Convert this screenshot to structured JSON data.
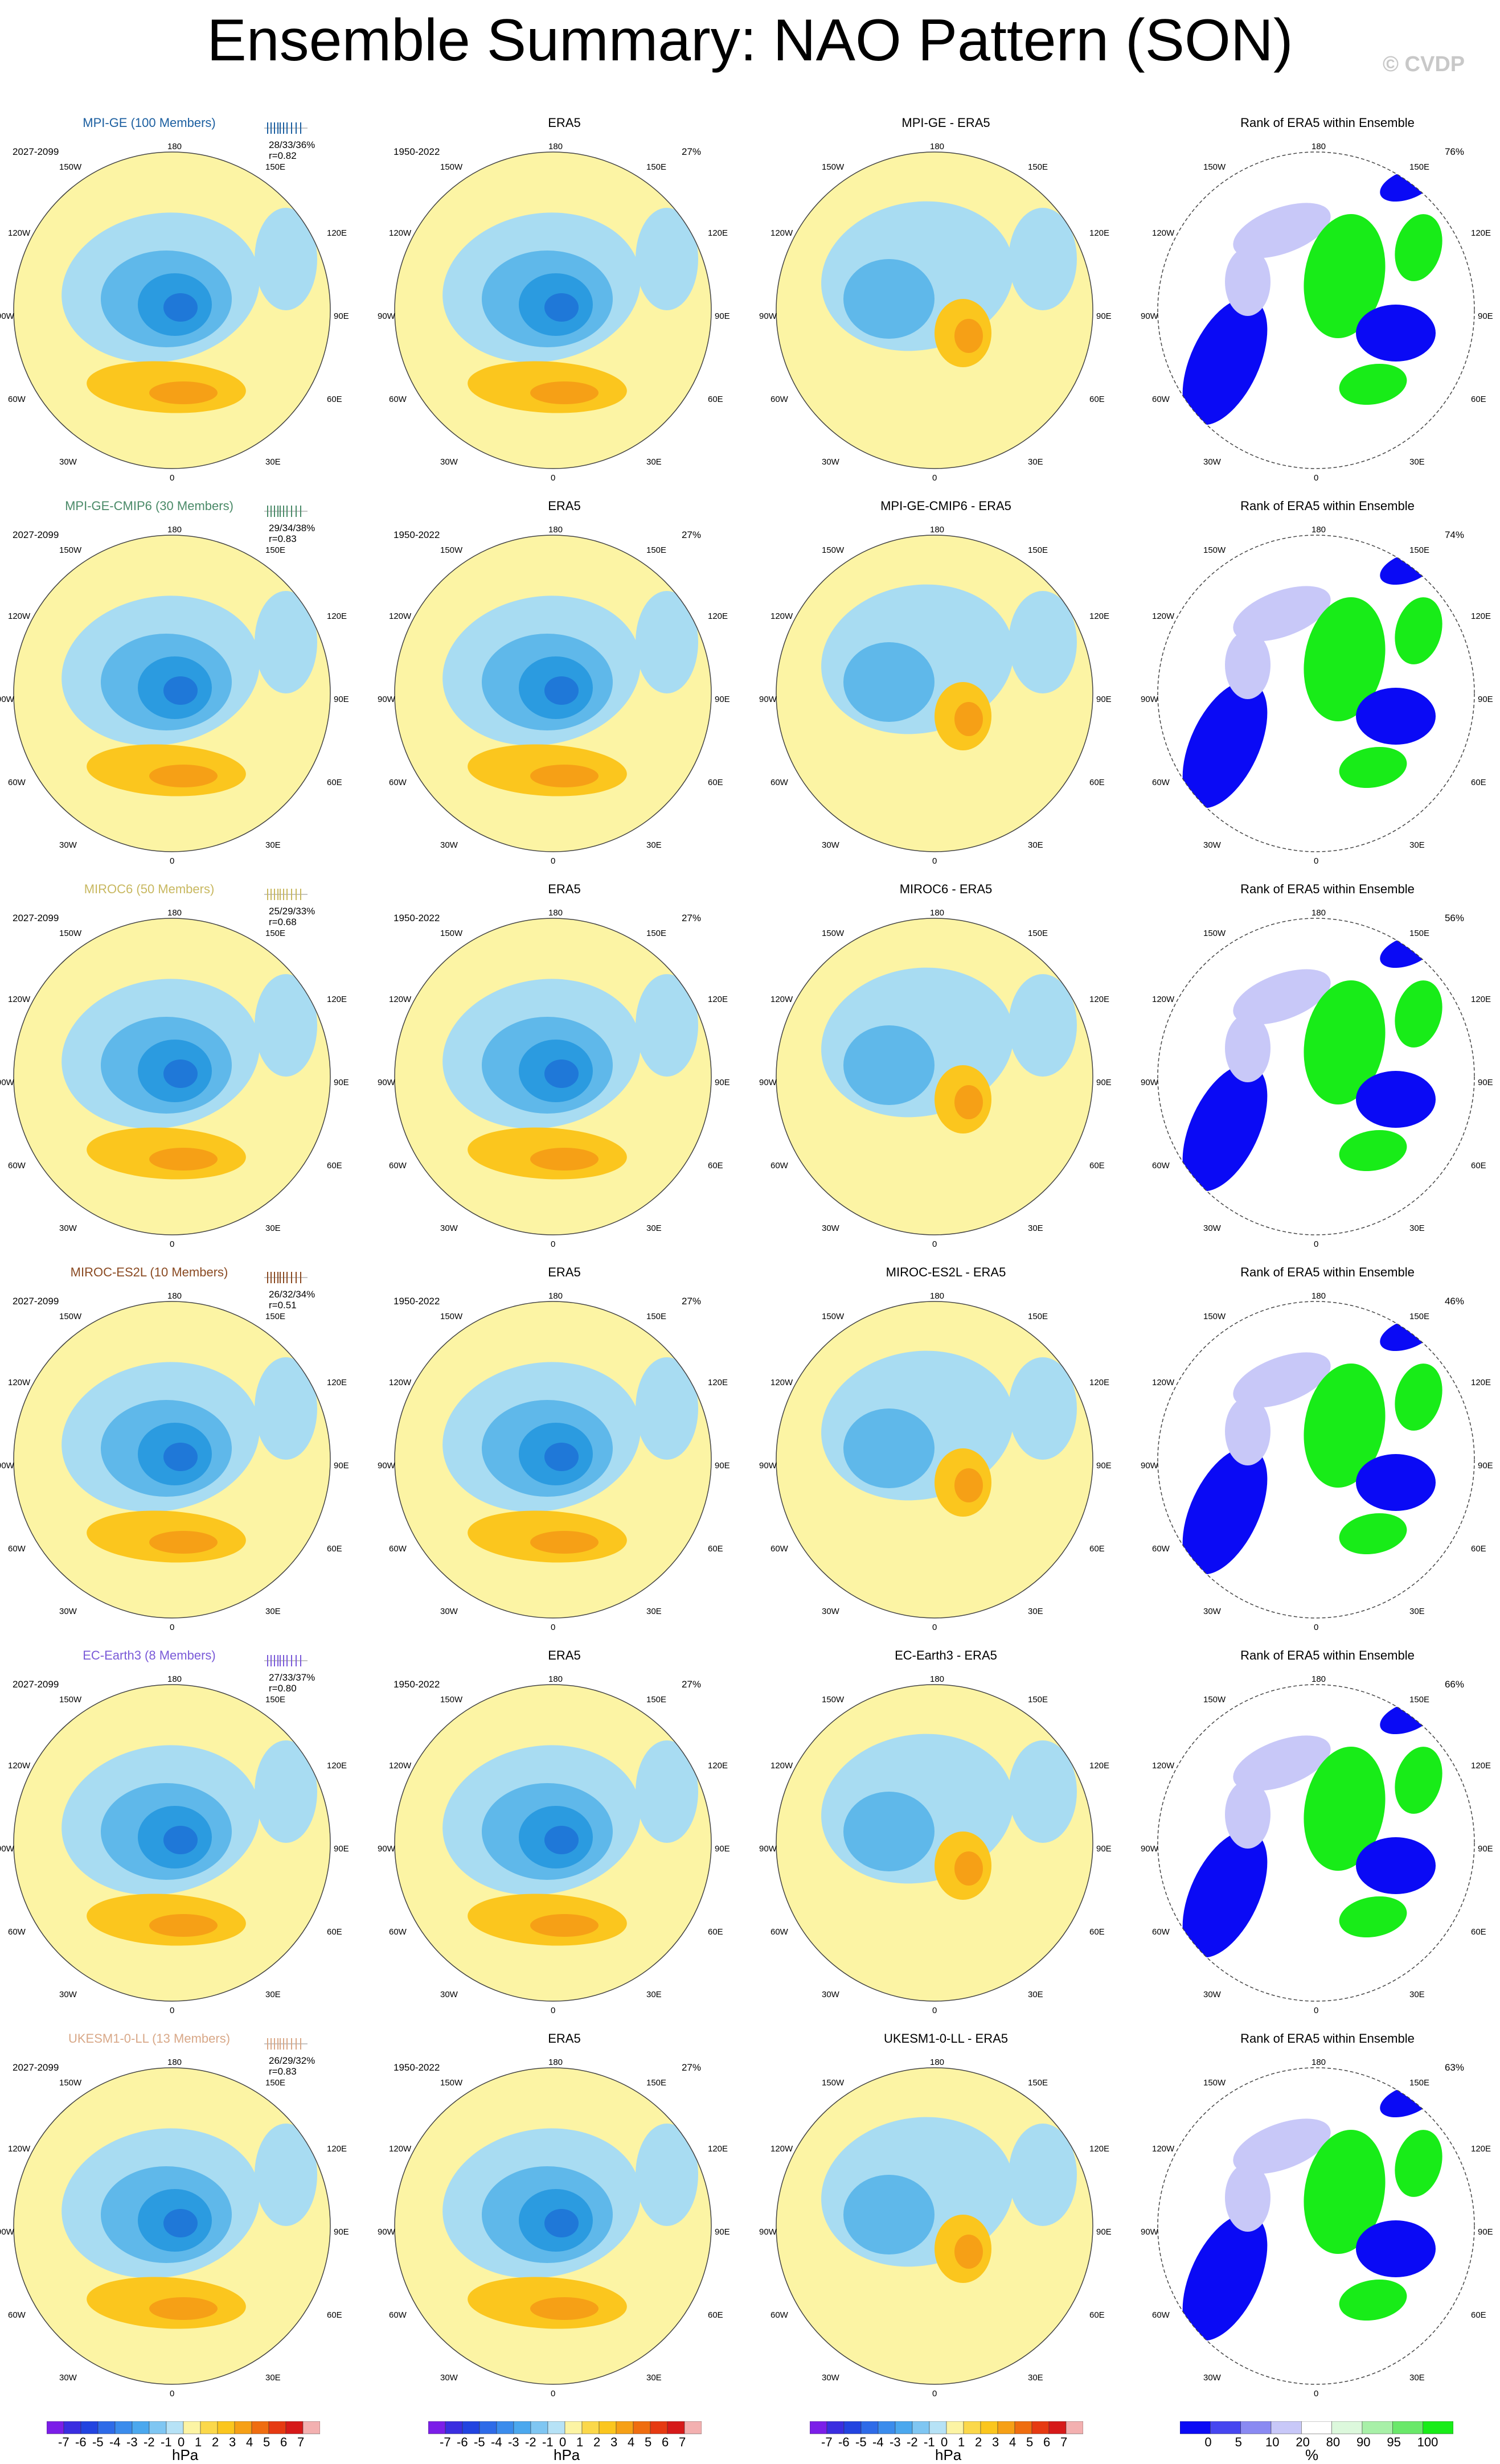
{
  "title": "Ensemble Summary: NAO Pattern (SON)",
  "watermark": "© CVDP",
  "colors": {
    "pos1": "#fcf4a4",
    "pos2": "#fbc61e",
    "pos3": "#f6a016",
    "pos4": "#ef6d10",
    "neg1": "#a8dcf2",
    "neg2": "#5fb8ea",
    "neg3": "#2b9be0",
    "neg4": "#1f78d8",
    "rank_low": "#0a0af5",
    "rank_mid": "#c8c8f8",
    "rank_high": "#18ec18"
  },
  "map_labels": {
    "top": "180",
    "bottom": "0",
    "left_top": "150W",
    "right_top": "150E",
    "left_upper": "120W",
    "right_upper": "120E",
    "left_mid": "90W",
    "right_mid": "90E",
    "left_lower": "60W",
    "right_lower": "60E",
    "left_bottom": "30W",
    "right_bottom": "30E"
  },
  "rows": [
    {
      "model": "MPI-GE (100 Members)",
      "model_color": "#1c5fa0",
      "period": "2027-2099",
      "stats1": "28/33/36%",
      "stats2": "r=0.82",
      "era_title": "ERA5",
      "era_period": "1950-2022",
      "era_pct": "27%",
      "diff_title": "MPI-GE - ERA5",
      "rank_title": "Rank of ERA5 within Ensemble",
      "rank_pct": "76%"
    },
    {
      "model": "MPI-GE-CMIP6 (30 Members)",
      "model_color": "#4a8a68",
      "period": "2027-2099",
      "stats1": "29/34/38%",
      "stats2": "r=0.83",
      "era_title": "ERA5",
      "era_period": "1950-2022",
      "era_pct": "27%",
      "diff_title": "MPI-GE-CMIP6 - ERA5",
      "rank_title": "Rank of ERA5 within Ensemble",
      "rank_pct": "74%"
    },
    {
      "model": "MIROC6 (50 Members)",
      "model_color": "#c8b860",
      "period": "2027-2099",
      "stats1": "25/29/33%",
      "stats2": "r=0.68",
      "era_title": "ERA5",
      "era_period": "1950-2022",
      "era_pct": "27%",
      "diff_title": "MIROC6 - ERA5",
      "rank_title": "Rank of ERA5 within Ensemble",
      "rank_pct": "56%"
    },
    {
      "model": "MIROC-ES2L (10 Members)",
      "model_color": "#8a4a22",
      "period": "2027-2099",
      "stats1": "26/32/34%",
      "stats2": "r=0.51",
      "era_title": "ERA5",
      "era_period": "1950-2022",
      "era_pct": "27%",
      "diff_title": "MIROC-ES2L - ERA5",
      "rank_title": "Rank of ERA5 within Ensemble",
      "rank_pct": "46%"
    },
    {
      "model": "EC-Earth3 (8 Members)",
      "model_color": "#7a5ad8",
      "period": "2027-2099",
      "stats1": "27/33/37%",
      "stats2": "r=0.80",
      "era_title": "ERA5",
      "era_period": "1950-2022",
      "era_pct": "27%",
      "diff_title": "EC-Earth3 - ERA5",
      "rank_title": "Rank of ERA5 within Ensemble",
      "rank_pct": "66%"
    },
    {
      "model": "UKESM1-0-LL (13 Members)",
      "model_color": "#d8a888",
      "period": "2027-2099",
      "stats1": "26/29/32%",
      "stats2": "r=0.83",
      "era_title": "ERA5",
      "era_period": "1950-2022",
      "era_pct": "27%",
      "diff_title": "UKESM1-0-LL - ERA5",
      "rank_title": "Rank of ERA5 within Ensemble",
      "rank_pct": "63%"
    }
  ],
  "colorbar_hpa": {
    "unit": "hPa",
    "ticks": [
      "-7",
      "-6",
      "-5",
      "-4",
      "-3",
      "-2",
      "-1",
      "0",
      "1",
      "2",
      "3",
      "4",
      "5",
      "6",
      "7"
    ],
    "colors": [
      "#7b1ee8",
      "#3a2ee0",
      "#2244e0",
      "#2e6be8",
      "#3b8cec",
      "#4ba8ee",
      "#7fc6f2",
      "#b6e2f6",
      "#fcf4a4",
      "#fbd84a",
      "#fbc61e",
      "#f6a016",
      "#ef6d10",
      "#e63a12",
      "#d61a1a",
      "#f3b0b0"
    ]
  },
  "colorbar_pct": {
    "unit": "%",
    "ticks": [
      "0",
      "5",
      "10",
      "20",
      "80",
      "90",
      "95",
      "100"
    ],
    "colors": [
      "#0a0af5",
      "#4646f0",
      "#8a8af2",
      "#c8c8f8",
      "#ffffff",
      "#dcf8dc",
      "#a8f0a8",
      "#6ae86a",
      "#18ec18"
    ]
  }
}
